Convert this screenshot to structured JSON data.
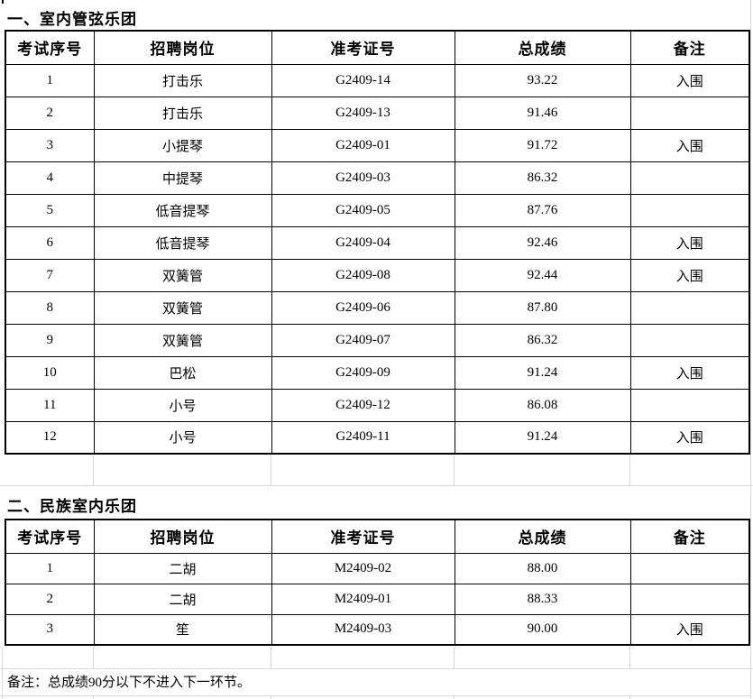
{
  "document": {
    "sections": [
      {
        "title": "一、室内管弦乐团",
        "headers": [
          "考试序号",
          "招聘岗位",
          "准考证号",
          "总成绩",
          "备注"
        ],
        "rows": [
          [
            "1",
            "打击乐",
            "G2409-14",
            "93.22",
            "入围"
          ],
          [
            "2",
            "打击乐",
            "G2409-13",
            "91.46",
            ""
          ],
          [
            "3",
            "小提琴",
            "G2409-01",
            "91.72",
            "入围"
          ],
          [
            "4",
            "中提琴",
            "G2409-03",
            "86.32",
            ""
          ],
          [
            "5",
            "低音提琴",
            "G2409-05",
            "87.76",
            ""
          ],
          [
            "6",
            "低音提琴",
            "G2409-04",
            "92.46",
            "入围"
          ],
          [
            "7",
            "双簧管",
            "G2409-08",
            "92.44",
            "入围"
          ],
          [
            "8",
            "双簧管",
            "G2409-06",
            "87.80",
            ""
          ],
          [
            "9",
            "双簧管",
            "G2409-07",
            "86.32",
            ""
          ],
          [
            "10",
            "巴松",
            "G2409-09",
            "91.24",
            "入围"
          ],
          [
            "11",
            "小号",
            "G2409-12",
            "86.08",
            ""
          ],
          [
            "12",
            "小号",
            "G2409-11",
            "91.24",
            "入围"
          ]
        ]
      },
      {
        "title": "二、民族室内乐团",
        "headers": [
          "考试序号",
          "招聘岗位",
          "准考证号",
          "总成绩",
          "备注"
        ],
        "rows": [
          [
            "1",
            "二胡",
            "M2409-02",
            "88.00",
            ""
          ],
          [
            "2",
            "二胡",
            "M2409-01",
            "88.33",
            ""
          ],
          [
            "3",
            "笙",
            "M2409-03",
            "90.00",
            "入围"
          ]
        ]
      }
    ],
    "footer_note": "备注：总成绩90分以下不进入下一环节。",
    "colors": {
      "border": "#000000",
      "gridline": "#d8d8d8",
      "background": "#ffffff",
      "text": "#000000"
    }
  }
}
